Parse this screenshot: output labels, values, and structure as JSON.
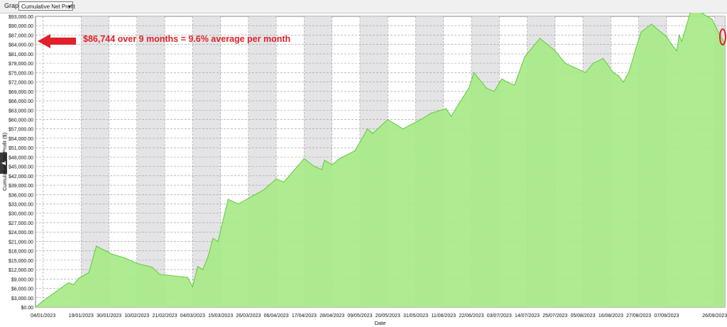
{
  "toolbar": {
    "graph_label": "Graph",
    "graph_select_value": "Cumulative Net Profit"
  },
  "annotation": "$86,744 over 9 months = 9.6% average per month",
  "colors": {
    "fill": "#a8ea88",
    "line": "#5fc93b",
    "band": "#e4e4e6",
    "grid": "#9a9a9a",
    "accent": "#e0202a"
  },
  "chart_data": {
    "type": "area",
    "xlabel": "Date",
    "ylabel": "Cumulative Net Profit ($)",
    "ylim": [
      0,
      93000
    ],
    "y_ticks": [
      "$0.00",
      "$3,000.00",
      "$6,000.00",
      "$9,000.00",
      "$12,000.00",
      "$15,000.00",
      "$18,000.00",
      "$21,000.00",
      "$24,000.00",
      "$27,000.00",
      "$30,000.00",
      "$33,000.00",
      "$36,000.00",
      "$39,000.00",
      "$42,000.00",
      "$45,000.00",
      "$48,000.00",
      "$51,000.00",
      "$54,000.00",
      "$57,000.00",
      "$60,000.00",
      "$63,000.00",
      "$66,000.00",
      "$69,000.00",
      "$72,000.00",
      "$75,000.00",
      "$78,000.00",
      "$81,000.00",
      "$84,000.00",
      "$87,000.00",
      "$90,000.00",
      "$93,000.00"
    ],
    "x_ticks": [
      "04/01/2023",
      "19/01/2023",
      "30/01/2023",
      "10/02/2023",
      "21/02/2023",
      "04/03/2023",
      "15/03/2023",
      "26/03/2023",
      "06/04/2023",
      "17/04/2023",
      "28/04/2023",
      "09/05/2023",
      "20/05/2023",
      "31/05/2023",
      "11/06/2023",
      "22/06/2023",
      "03/07/2023",
      "14/07/2023",
      "25/07/2023",
      "05/08/2023",
      "16/08/2023",
      "27/08/2023",
      "07/09/2023",
      "26/09/2023"
    ],
    "grid": true,
    "x": [
      "01/01/2023",
      "04/01/2023",
      "14/01/2023",
      "16/01/2023",
      "18/01/2023",
      "22/01/2023",
      "25/01/2023",
      "31/01/2023",
      "05/02/2023",
      "10/02/2023",
      "11/02/2023",
      "16/02/2023",
      "19/02/2023",
      "02/03/2023",
      "04/03/2023",
      "06/03/2023",
      "08/03/2023",
      "10/03/2023",
      "12/03/2023",
      "14/03/2023",
      "18/03/2023",
      "22/03/2023",
      "01/04/2023",
      "06/04/2023",
      "09/04/2023",
      "17/04/2023",
      "21/04/2023",
      "24/04/2023",
      "25/04/2023",
      "28/04/2023",
      "01/05/2023",
      "07/05/2023",
      "12/05/2023",
      "14/05/2023",
      "20/05/2023",
      "26/05/2023",
      "02/06/2023",
      "06/06/2023",
      "12/06/2023",
      "14/06/2023",
      "17/06/2023",
      "21/06/2023",
      "23/06/2023",
      "28/06/2023",
      "01/07/2023",
      "04/07/2023",
      "06/07/2023",
      "09/07/2023",
      "13/07/2023",
      "19/07/2023",
      "25/07/2023",
      "29/07/2023",
      "06/08/2023",
      "09/08/2023",
      "13/08/2023",
      "17/08/2023",
      "19/08/2023",
      "21/08/2023",
      "23/08/2023",
      "24/08/2023",
      "26/08/2023",
      "28/08/2023",
      "01/09/2023",
      "07/09/2023",
      "09/09/2023",
      "11/09/2023",
      "12/09/2023",
      "13/09/2023",
      "15/09/2023",
      "17/09/2023",
      "21/09/2023",
      "25/09/2023",
      "28/09/2023",
      "30/09/2023"
    ],
    "series": [
      {
        "values": [
          0,
          2000,
          7800,
          7200,
          9200,
          11000,
          19500,
          17000,
          15800,
          14000,
          13800,
          12800,
          10500,
          9500,
          6500,
          13000,
          12000,
          16000,
          22000,
          21000,
          34500,
          33000,
          37500,
          41000,
          40000,
          47500,
          45000,
          44000,
          47000,
          45500,
          47500,
          50000,
          57000,
          55500,
          60000,
          57000,
          60000,
          62000,
          63500,
          61000,
          65000,
          70000,
          75000,
          70000,
          69000,
          73000,
          72000,
          71000,
          80000,
          86000,
          82000,
          78000,
          75000,
          78000,
          79500,
          75000,
          74000,
          72000,
          75000,
          77500,
          83000,
          88000,
          90500,
          86500,
          84000,
          82000,
          87000,
          85000,
          90500,
          96000,
          94000,
          92000,
          87000,
          84500
        ]
      }
    ]
  }
}
